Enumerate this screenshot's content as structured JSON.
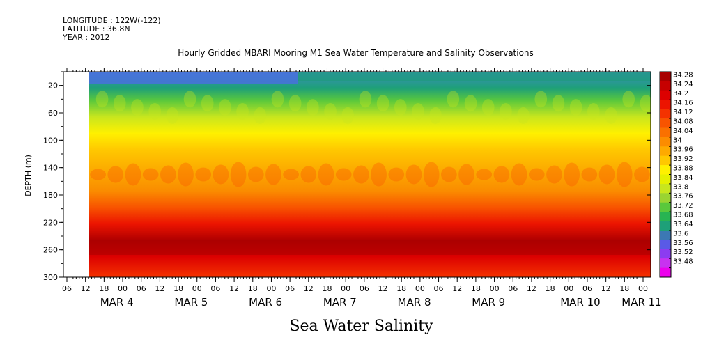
{
  "meta": {
    "longitude": "LONGITUDE : 122W(-122)",
    "latitude": "LATITUDE : 36.8N",
    "year": "YEAR : 2012"
  },
  "title": "Hourly Gridded MBARI Mooring M1 Sea Water Temperature and Salinity Observations",
  "bottom_title": "Sea Water Salinity",
  "chart_data": {
    "type": "heatmap",
    "title": "Hourly Gridded MBARI Mooring M1 Sea Water Temperature and Salinity Observations",
    "subtitle": "Sea Water Salinity",
    "xlabel": "",
    "ylabel": "DEPTH (m)",
    "ylim": [
      300,
      0
    ],
    "y_ticks": [
      20,
      60,
      100,
      140,
      180,
      220,
      260,
      300
    ],
    "x_hour_ticks": [
      "06",
      "12",
      "18",
      "00",
      "06",
      "12",
      "18",
      "00",
      "06",
      "12",
      "18",
      "00",
      "06",
      "12",
      "18",
      "00",
      "06",
      "12",
      "18",
      "00",
      "06",
      "12",
      "18",
      "00",
      "06",
      "12",
      "18",
      "00",
      "06",
      "12",
      "18",
      "00"
    ],
    "x_day_labels": [
      "MAR  4",
      "MAR  5",
      "MAR  6",
      "MAR  7",
      "MAR  8",
      "MAR  9",
      "MAR 10",
      "MAR 11"
    ],
    "colorbar_levels": [
      34.28,
      34.24,
      34.2,
      34.16,
      34.12,
      34.08,
      34.04,
      34,
      33.96,
      33.92,
      33.88,
      33.84,
      33.8,
      33.76,
      33.72,
      33.68,
      33.64,
      33.6,
      33.56,
      33.52,
      33.48
    ],
    "colorbar_colors": [
      "#a80000",
      "#c60000",
      "#dc0000",
      "#ec1400",
      "#f43200",
      "#f85400",
      "#fa7000",
      "#fc8c00",
      "#feaa00",
      "#ffc800",
      "#fff000",
      "#e6f000",
      "#c8e61e",
      "#9ad432",
      "#5ac83c",
      "#28b452",
      "#1ea078",
      "#3c78b4",
      "#5a5ae6",
      "#8c3cf0",
      "#c832f0",
      "#ec00ec"
    ],
    "data_start": "MAR 4 12",
    "depth_profile_typical": [
      {
        "depth": 10,
        "salinity": 33.62
      },
      {
        "depth": 40,
        "salinity": 33.76
      },
      {
        "depth": 80,
        "salinity": 33.94
      },
      {
        "depth": 120,
        "salinity": 34.02
      },
      {
        "depth": 160,
        "salinity": 34.08
      },
      {
        "depth": 200,
        "salinity": 34.12
      },
      {
        "depth": 230,
        "salinity": 34.18
      },
      {
        "depth": 255,
        "salinity": 34.26
      },
      {
        "depth": 290,
        "salinity": 34.2
      }
    ]
  }
}
